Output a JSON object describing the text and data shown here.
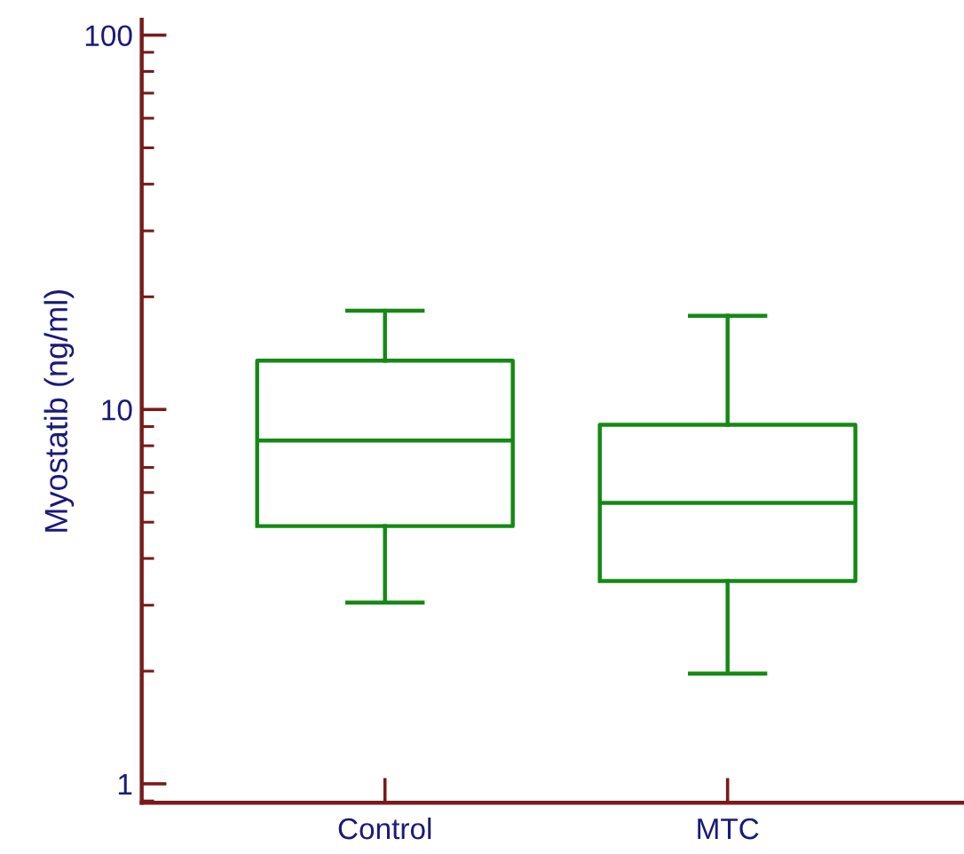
{
  "chart_data": {
    "type": "box",
    "ylabel": "Myostatib (ng/ml)",
    "categories": [
      "Control",
      "MTC"
    ],
    "color": "#138a13",
    "boxes": [
      {
        "low": 3.05,
        "q1": 4.88,
        "median": 8.26,
        "q3": 13.5,
        "high": 18.35
      },
      {
        "low": 1.97,
        "q1": 3.48,
        "median": 5.63,
        "q3": 9.1,
        "high": 17.8
      }
    ],
    "log": "y",
    "ylim": [
      0.89,
      110
    ],
    "yticks": [
      1,
      10,
      100
    ],
    "grid": false
  }
}
